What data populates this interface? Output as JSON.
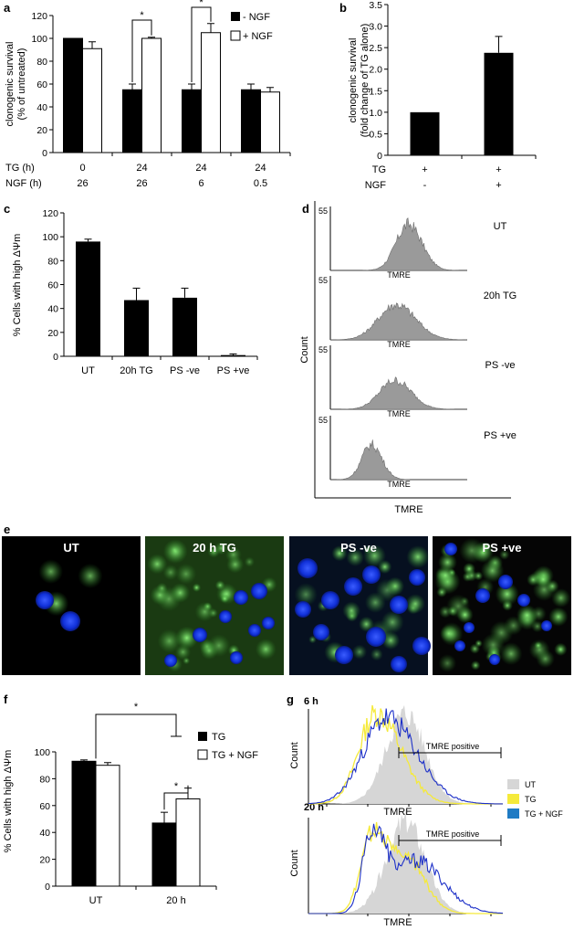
{
  "chart_data": [
    {
      "id": "a",
      "type": "bar",
      "panel_label": "a",
      "ylabel": [
        "clonogenic survival",
        "(% of untreated)"
      ],
      "ylim": [
        0,
        120
      ],
      "yticks": [
        0,
        20,
        40,
        60,
        80,
        100,
        120
      ],
      "row_labels": [
        "TG (h)",
        "NGF (h)"
      ],
      "rows": [
        [
          "0",
          "24",
          "24",
          "24"
        ],
        [
          "26",
          "26",
          "6",
          "0.5"
        ]
      ],
      "series": [
        {
          "name": "- NGF",
          "color": "#000000",
          "values": [
            100,
            55,
            55,
            55
          ],
          "errors": [
            0,
            5,
            5,
            5
          ]
        },
        {
          "name": "+ NGF",
          "color": "#ffffff",
          "values": [
            91,
            100,
            105,
            53
          ],
          "errors": [
            6,
            1,
            8,
            4
          ]
        }
      ],
      "legend": "top-right",
      "significance": [
        "*",
        "*"
      ]
    },
    {
      "id": "b",
      "type": "bar",
      "panel_label": "b",
      "ylabel": [
        "clonogenic survival",
        "(fold change of TG alone)"
      ],
      "ylim": [
        0,
        3.5
      ],
      "yticks": [
        "0",
        "0.5",
        "1.0",
        "1.5",
        "2.0",
        "2.5",
        "3.0",
        "3.5"
      ],
      "row_labels": [
        "TG",
        "NGF"
      ],
      "rows": [
        [
          "+",
          "+"
        ],
        [
          "-",
          "+"
        ]
      ],
      "values": [
        1.0,
        2.38
      ],
      "errors": [
        0,
        0.38
      ]
    },
    {
      "id": "c",
      "type": "bar",
      "panel_label": "c",
      "ylabel": "% Cells with high ΔΨm",
      "ylim": [
        0,
        120
      ],
      "yticks": [
        0,
        20,
        40,
        60,
        80,
        100,
        120
      ],
      "categories": [
        "UT",
        "20h TG",
        "PS -ve",
        "PS +ve"
      ],
      "values": [
        96,
        47,
        49,
        1
      ],
      "errors": [
        2,
        10,
        8,
        1
      ]
    },
    {
      "id": "d",
      "type": "histogram",
      "panel_label": "d",
      "ylabel": "Count",
      "xlabel": "TMRE",
      "ymax_label": "55",
      "sub_xlabel": "TMRE",
      "histograms": [
        {
          "label": "UT",
          "center": 0.57,
          "width": 0.09,
          "height": 0.72
        },
        {
          "label": "20h TG",
          "center": 0.48,
          "width": 0.13,
          "height": 0.55
        },
        {
          "label": "PS -ve",
          "center": 0.47,
          "width": 0.11,
          "height": 0.45
        },
        {
          "label": "PS +ve",
          "center": 0.3,
          "width": 0.07,
          "height": 0.55
        }
      ]
    },
    {
      "id": "f",
      "type": "bar",
      "panel_label": "f",
      "ylabel": "% Cells with high ΔΨm",
      "ylim": [
        0,
        100
      ],
      "yticks": [
        0,
        20,
        40,
        60,
        80,
        100
      ],
      "categories": [
        "UT",
        "20 h"
      ],
      "series": [
        {
          "name": "TG",
          "color": "#000000",
          "values": [
            93,
            47
          ],
          "errors": [
            1,
            8
          ]
        },
        {
          "name": "TG + NGF",
          "color": "#ffffff",
          "values": [
            90,
            65
          ],
          "errors": [
            2,
            8
          ]
        }
      ],
      "legend": "top-right",
      "significance": [
        "*",
        "*"
      ]
    },
    {
      "id": "g",
      "type": "histogram",
      "panel_label": "g",
      "ylabel": "Count",
      "xlabel": "TMRE",
      "gate_label": "TMRE positive",
      "legend": [
        {
          "name": "UT",
          "color": "#d6d6d6"
        },
        {
          "name": "TG",
          "color": "#f5ea3b"
        },
        {
          "name": "TG + NGF",
          "color": "#1f7bc4"
        }
      ],
      "plots": [
        {
          "title": "6 h"
        },
        {
          "title": "20 h"
        }
      ]
    }
  ],
  "micrographs": {
    "panel_label": "e",
    "images": [
      {
        "label": "UT"
      },
      {
        "label": "20 h TG"
      },
      {
        "label": "PS -ve"
      },
      {
        "label": "PS +ve"
      }
    ]
  },
  "colors": {
    "nucleus": "#1030d8",
    "mito": "#3ec43a",
    "background": "#000000"
  }
}
